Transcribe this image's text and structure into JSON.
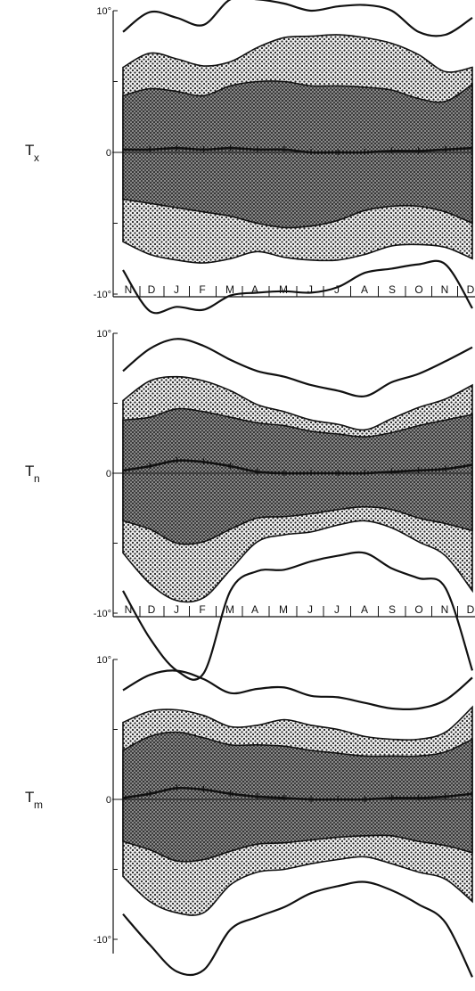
{
  "chart_data": [
    {
      "type": "area",
      "panel_label": "T",
      "panel_sub": "x",
      "y_tick_labels": [
        "10°",
        "0",
        "-10°"
      ],
      "ylim": [
        -12,
        12
      ],
      "months": [
        "N",
        "D",
        "J",
        "F",
        "M",
        "A",
        "M",
        "J",
        "J",
        "A",
        "S",
        "O",
        "N",
        "D"
      ],
      "x": [
        0,
        1,
        2,
        3,
        4,
        5,
        6,
        7,
        8,
        9,
        10,
        11,
        12,
        13
      ],
      "mean": [
        0.2,
        0.2,
        0.3,
        0.2,
        0.3,
        0.2,
        0.2,
        0.0,
        0.0,
        0.0,
        0.1,
        0.1,
        0.2,
        0.3
      ],
      "inner_upper": [
        4,
        4.5,
        4.3,
        4.0,
        4.7,
        5.0,
        5.0,
        4.7,
        4.7,
        4.6,
        4.4,
        3.8,
        3.6,
        4.8
      ],
      "inner_lower": [
        -3.3,
        -3.6,
        -3.9,
        -4.2,
        -4.5,
        -5.0,
        -5.3,
        -5.2,
        -4.8,
        -4.1,
        -3.8,
        -3.8,
        -4.2,
        -5.0
      ],
      "outer_upper": [
        6,
        7.0,
        6.6,
        6.1,
        6.4,
        7.4,
        8.1,
        8.2,
        8.3,
        8.1,
        7.7,
        6.9,
        5.7,
        6.0
      ],
      "outer_lower": [
        -6.3,
        -7.2,
        -7.6,
        -7.8,
        -7.5,
        -7.0,
        -7.4,
        -7.6,
        -7.6,
        -7.2,
        -6.6,
        -6.5,
        -6.7,
        -7.5
      ],
      "max_curve": [
        8.5,
        9.9,
        9.5,
        9.0,
        10.8,
        10.8,
        10.5,
        10.0,
        10.3,
        10.4,
        10.0,
        8.5,
        8.3,
        9.5
      ],
      "min_curve": [
        -8.3,
        -11.2,
        -10.9,
        -11.1,
        -10.1,
        -9.9,
        -9.8,
        -9.9,
        -9.5,
        -8.5,
        -8.2,
        -7.9,
        -7.9,
        -11.0
      ]
    },
    {
      "type": "area",
      "panel_label": "T",
      "panel_sub": "n",
      "y_tick_labels": [
        "10°",
        "0",
        "-10°"
      ],
      "ylim": [
        -12,
        12
      ],
      "months": [
        "N",
        "D",
        "J",
        "F",
        "M",
        "A",
        "M",
        "J",
        "J",
        "A",
        "S",
        "O",
        "N",
        "D"
      ],
      "x": [
        0,
        1,
        2,
        3,
        4,
        5,
        6,
        7,
        8,
        9,
        10,
        11,
        12,
        13
      ],
      "mean": [
        0.2,
        0.5,
        0.9,
        0.8,
        0.5,
        0.1,
        0.0,
        0.0,
        0.0,
        0.0,
        0.1,
        0.2,
        0.3,
        0.6
      ],
      "inner_upper": [
        3.8,
        4.0,
        4.6,
        4.4,
        4.0,
        3.6,
        3.4,
        3.0,
        2.8,
        2.6,
        2.9,
        3.4,
        3.8,
        4.2
      ],
      "inner_lower": [
        -3.4,
        -4.0,
        -5.0,
        -4.9,
        -4.0,
        -3.2,
        -3.1,
        -2.9,
        -2.6,
        -2.4,
        -2.6,
        -3.2,
        -3.6,
        -4.1
      ],
      "outer_upper": [
        5.2,
        6.6,
        6.9,
        6.6,
        5.9,
        4.9,
        4.4,
        3.8,
        3.5,
        3.1,
        3.9,
        4.7,
        5.3,
        6.3
      ],
      "outer_lower": [
        -5.7,
        -7.9,
        -9.1,
        -8.9,
        -6.9,
        -4.9,
        -4.4,
        -4.2,
        -3.7,
        -3.4,
        -3.9,
        -4.9,
        -5.9,
        -8.4
      ],
      "max_curve": [
        7.3,
        8.9,
        9.6,
        9.1,
        8.1,
        7.3,
        6.9,
        6.3,
        5.9,
        5.5,
        6.5,
        7.1,
        8.0,
        9.0
      ],
      "min_curve": [
        -8.4,
        -11.8,
        -14.1,
        -14.3,
        -8.4,
        -7.0,
        -6.9,
        -6.3,
        -5.9,
        -5.7,
        -6.8,
        -7.5,
        -8.2,
        -14.1
      ]
    },
    {
      "type": "area",
      "panel_label": "T",
      "panel_sub": "m",
      "y_tick_labels": [
        "10°",
        "0",
        "-10°"
      ],
      "ylim": [
        -12,
        12
      ],
      "months": [
        "N",
        "D",
        "J",
        "F",
        "M",
        "A",
        "M",
        "J",
        "J",
        "A",
        "S",
        "O",
        "N",
        "D"
      ],
      "x": [
        0,
        1,
        2,
        3,
        4,
        5,
        6,
        7,
        8,
        9,
        10,
        11,
        12,
        13
      ],
      "mean": [
        0.1,
        0.4,
        0.8,
        0.7,
        0.4,
        0.2,
        0.1,
        0.0,
        0.0,
        0.0,
        0.1,
        0.1,
        0.2,
        0.4
      ],
      "inner_upper": [
        3.5,
        4.5,
        4.8,
        4.4,
        3.9,
        3.9,
        3.8,
        3.5,
        3.3,
        3.1,
        3.1,
        3.1,
        3.4,
        4.3
      ],
      "inner_lower": [
        -3.0,
        -3.6,
        -4.4,
        -4.3,
        -3.7,
        -3.2,
        -3.1,
        -2.9,
        -2.7,
        -2.6,
        -2.6,
        -3.0,
        -3.3,
        -3.8
      ],
      "outer_upper": [
        5.5,
        6.3,
        6.4,
        6.0,
        5.2,
        5.3,
        5.7,
        5.3,
        5.0,
        4.5,
        4.3,
        4.3,
        4.8,
        6.6
      ],
      "outer_lower": [
        -5.5,
        -7.3,
        -8.1,
        -8.1,
        -6.1,
        -5.2,
        -5.0,
        -4.6,
        -4.3,
        -4.1,
        -4.6,
        -5.2,
        -5.7,
        -7.3
      ],
      "max_curve": [
        7.8,
        8.9,
        9.2,
        8.6,
        7.6,
        7.9,
        8.0,
        7.4,
        7.3,
        6.9,
        6.5,
        6.5,
        7.1,
        8.7
      ],
      "min_curve": [
        -8.2,
        -10.4,
        -12.3,
        -12.2,
        -9.3,
        -8.4,
        -7.7,
        -6.7,
        -6.2,
        -5.9,
        -6.5,
        -7.5,
        -8.8,
        -12.7
      ]
    }
  ]
}
